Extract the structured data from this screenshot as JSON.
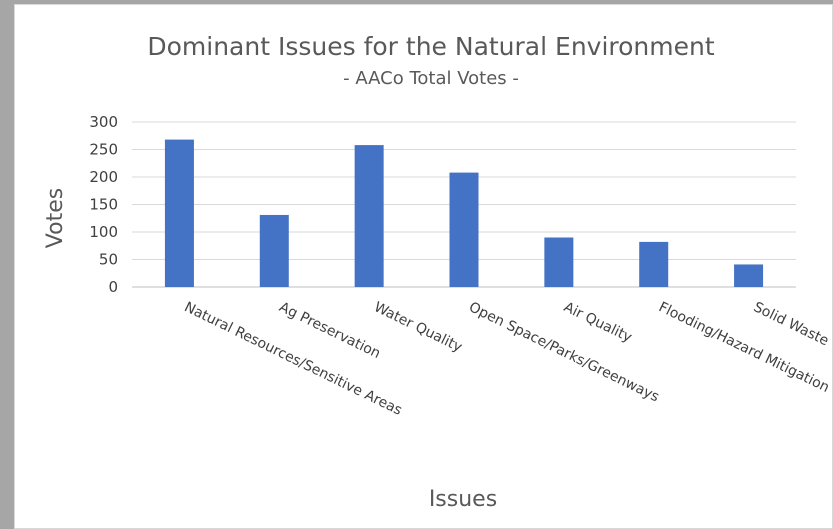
{
  "chart_data": {
    "type": "bar",
    "title": "Dominant Issues for the Natural Environment",
    "subtitle": "- AACo Total Votes -",
    "xlabel": "Issues",
    "ylabel": "Votes",
    "categories": [
      "Natural Resources/Sensitive Areas",
      "Ag Preservation",
      "Water Quality",
      "Open Space/Parks/Greenways",
      "Air Quality",
      "Flooding/Hazard Mitigation",
      "Solid Waste"
    ],
    "values": [
      268,
      131,
      258,
      208,
      90,
      82,
      41
    ],
    "yticks": [
      0,
      50,
      100,
      150,
      200,
      250,
      300
    ],
    "ylim": [
      0,
      300
    ],
    "grid": true,
    "bar_color": "#4472c4",
    "grid_color": "#d9d9d9"
  }
}
